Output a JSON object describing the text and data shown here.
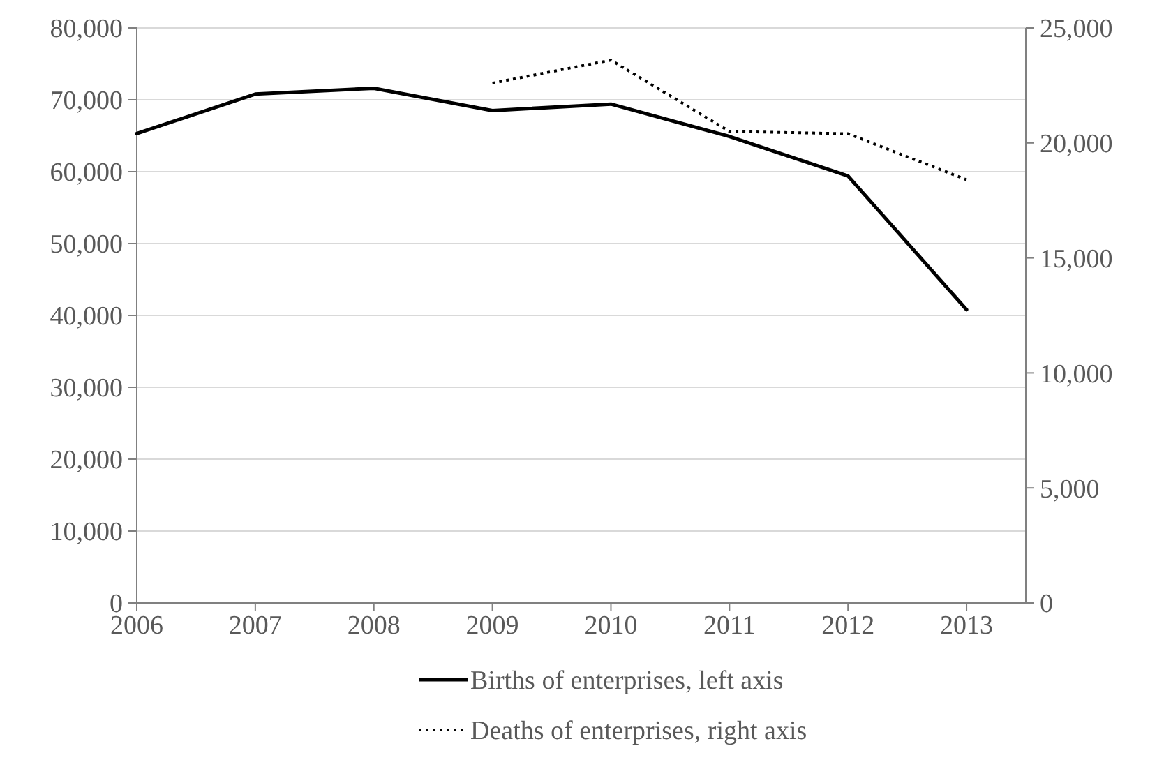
{
  "chart_data": {
    "type": "line",
    "x": [
      2006,
      2007,
      2008,
      2009,
      2010,
      2011,
      2012,
      2013
    ],
    "xlim": [
      2006,
      2013.5
    ],
    "xticks": [
      2006,
      2007,
      2008,
      2009,
      2010,
      2011,
      2012,
      2013
    ],
    "ylim": [
      0,
      80000
    ],
    "yticks": [
      {
        "value": 0,
        "label": "0"
      },
      {
        "value": 10000,
        "label": "10,000"
      },
      {
        "value": 20000,
        "label": "20,000"
      },
      {
        "value": 30000,
        "label": "30,000"
      },
      {
        "value": 40000,
        "label": "40,000"
      },
      {
        "value": 50000,
        "label": "50,000"
      },
      {
        "value": 60000,
        "label": "60,000"
      },
      {
        "value": 70000,
        "label": "70,000"
      },
      {
        "value": 80000,
        "label": "80,000"
      }
    ],
    "y2lim": [
      0,
      25000
    ],
    "y2ticks": [
      {
        "value": 0,
        "label": "0"
      },
      {
        "value": 5000,
        "label": "5,000"
      },
      {
        "value": 10000,
        "label": "10,000"
      },
      {
        "value": 15000,
        "label": "15,000"
      },
      {
        "value": 20000,
        "label": "20,000"
      },
      {
        "value": 25000,
        "label": "25,000"
      }
    ],
    "grid": "y",
    "legend": "bottom",
    "series": [
      {
        "name": "Births of enterprises, left axis",
        "color": "#000000",
        "line_style": "solid",
        "values": [
          65300,
          70800,
          71600,
          68500,
          69400,
          64900,
          59400,
          40800
        ]
      },
      {
        "name": "Deaths of enterprises, right axis",
        "color": "#000000",
        "line_style": "dotted",
        "axis": "y2",
        "values": [
          null,
          null,
          null,
          22600,
          23600,
          20500,
          20400,
          18400
        ]
      }
    ]
  }
}
